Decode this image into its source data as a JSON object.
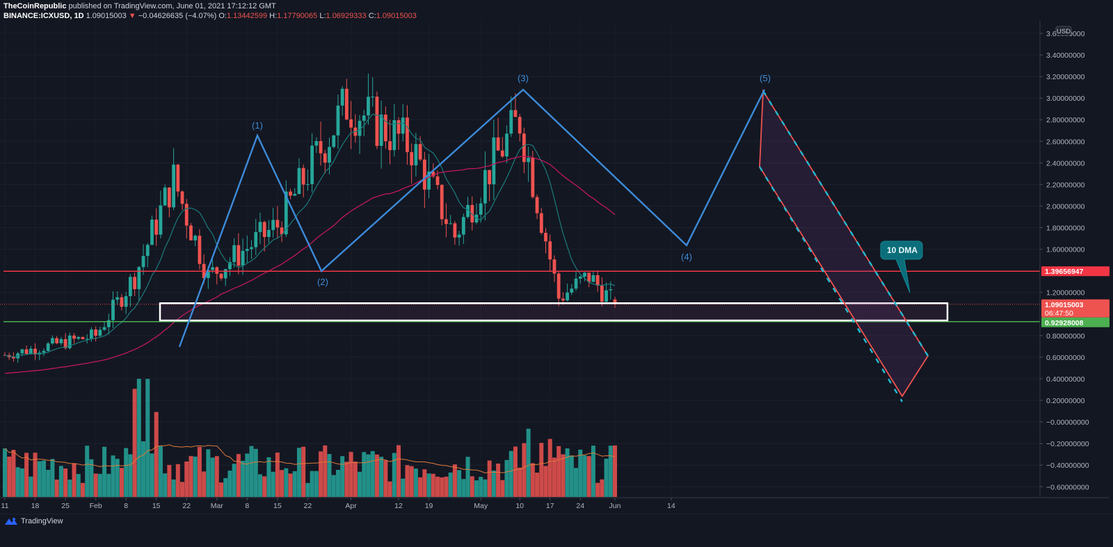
{
  "header": {
    "publisher": "TheCoinRepublic",
    "published_text": "published on TradingView.com, June 01, 2021 17:12:12 GMT",
    "symbol": "BINANCE:ICXUSD, 1D",
    "last": "1.09015003",
    "change_arrow": "▼",
    "change": "−0.04626635 (−4.07%)",
    "o_label": "O:",
    "o": "1.13442599",
    "h_label": "H:",
    "h": "1.17790065",
    "l_label": "L:",
    "l": "1.06929333",
    "c_label": "C:",
    "c": "1.09015003"
  },
  "price_axis": {
    "currency": "USD",
    "ticks": [
      "3.60000000",
      "3.40000000",
      "3.20000000",
      "3.00000000",
      "2.80000000",
      "2.60000000",
      "2.40000000",
      "2.20000000",
      "2.00000000",
      "1.80000000",
      "1.60000000",
      "1.20000000",
      "0.80000000",
      "0.60000000",
      "0.40000000",
      "0.20000000",
      "−0.00000000",
      "−0.20000000",
      "−0.40000000",
      "−0.60000000"
    ],
    "badges": {
      "resistance": "1.39656947",
      "current_price": "1.09015003",
      "countdown": "06:47:50",
      "support": "0.92928008"
    }
  },
  "time_axis": {
    "ticks": [
      "11",
      "18",
      "25",
      "Feb",
      "8",
      "15",
      "22",
      "Mar",
      "8",
      "15",
      "22",
      "Apr",
      "12",
      "19",
      "May",
      "10",
      "17",
      "24",
      "Jun",
      "14"
    ]
  },
  "annotations": {
    "wave_labels": [
      "(1)",
      "(2)",
      "(3)",
      "(4)",
      "(5)"
    ],
    "callout": "10 DMA"
  },
  "footer": {
    "brand": "TradingView"
  },
  "colors": {
    "background": "#131722",
    "bull": "#26a69a",
    "bear": "#ef5350",
    "wave_line": "#3d8bd9",
    "ma_10": "#1a7d7d",
    "ma_50": "#c2185b",
    "volume_ma": "#e07a3a",
    "resistance": "#f23645",
    "support": "#4caf50",
    "callout_bg": "#0b6e7a"
  },
  "chart_data": {
    "type": "candlestick",
    "title": "BINANCE:ICXUSD, 1D",
    "xlabel": "",
    "ylabel": "USD",
    "ylim": [
      -0.6,
      3.6
    ],
    "x_range": [
      "2021-01-11",
      "2021-06-14"
    ],
    "grid": true,
    "legend": null,
    "series": [
      {
        "name": "Elliott wave pivots",
        "points": [
          {
            "label": "start",
            "date": "2021-02-07",
            "value": 0.72
          },
          {
            "label": "(1)",
            "date": "2021-02-19",
            "value": 2.65
          },
          {
            "label": "(2)",
            "date": "2021-02-28",
            "value": 1.32
          },
          {
            "label": "(3)",
            "date": "2021-03-31",
            "value": 3.1
          },
          {
            "label": "(4)",
            "date": "2021-04-26",
            "value": 1.63
          },
          {
            "label": "(5)",
            "date": "2021-05-09",
            "value": 3.1
          }
        ]
      },
      {
        "name": "Horizontal resistance",
        "value": 1.39656947
      },
      {
        "name": "Horizontal support",
        "value": 0.92928008
      },
      {
        "name": "Demand zone box",
        "top": 1.1,
        "bottom": 0.94,
        "from": "2021-02-05",
        "to": "2021-06-06"
      },
      {
        "name": "Descending channel",
        "points": [
          {
            "date": "2021-05-09",
            "value": 3.09
          },
          {
            "date": "2021-05-28",
            "value": 0.22
          },
          {
            "date": "2021-06-06",
            "value": 0.6
          }
        ]
      },
      {
        "name": "Close (key points)",
        "points": [
          {
            "date": "2021-01-11",
            "value": 0.62
          },
          {
            "date": "2021-02-01",
            "value": 0.8
          },
          {
            "date": "2021-02-10",
            "value": 1.35
          },
          {
            "date": "2021-02-19",
            "value": 2.25
          },
          {
            "date": "2021-02-27",
            "value": 1.35
          },
          {
            "date": "2021-03-15",
            "value": 1.82
          },
          {
            "date": "2021-03-31",
            "value": 2.95
          },
          {
            "date": "2021-04-15",
            "value": 2.55
          },
          {
            "date": "2021-04-25",
            "value": 1.72
          },
          {
            "date": "2021-05-04",
            "value": 2.42
          },
          {
            "date": "2021-05-10",
            "value": 2.8
          },
          {
            "date": "2021-05-19",
            "value": 1.15
          },
          {
            "date": "2021-05-26",
            "value": 1.35
          },
          {
            "date": "2021-06-01",
            "value": 1.09015003
          }
        ]
      },
      {
        "name": "OHLC last bar",
        "date": "2021-06-01",
        "open": 1.13442599,
        "high": 1.17790065,
        "low": 1.06929333,
        "close": 1.09015003
      }
    ],
    "volume": {
      "peak_date": "2021-02-10",
      "note": "volume histogram in bottom pane with moving average"
    }
  }
}
